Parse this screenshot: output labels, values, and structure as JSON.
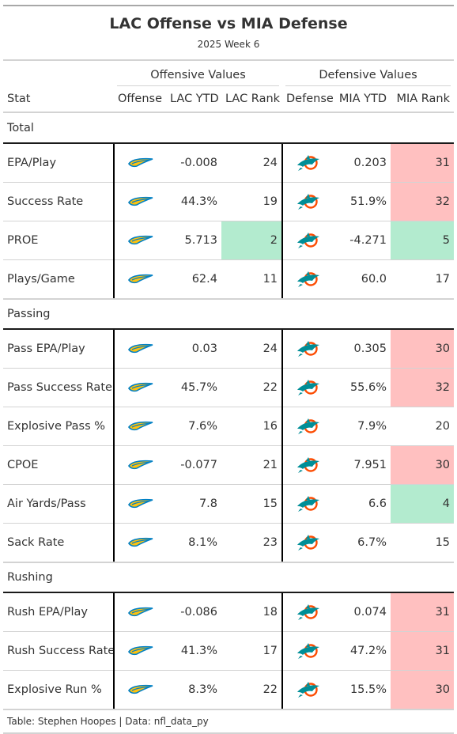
{
  "title": "LAC Offense vs MIA Defense",
  "subtitle": "2025 Week 6",
  "spanners": {
    "offense": "Offensive Values",
    "defense": "Defensive Values"
  },
  "columns": {
    "stat": "Stat",
    "offense": "Offense",
    "lac_ytd": "LAC YTD",
    "lac_rank": "LAC Rank",
    "defense": "Defense",
    "mia_ytd": "MIA YTD",
    "mia_rank": "MIA Rank"
  },
  "colors": {
    "bad": "#ffc0c0",
    "good": "#b3ebcf",
    "chargers_blue": "#0080c6",
    "chargers_gold": "#ffc20e",
    "dolphins_aqua": "#008e97",
    "dolphins_orange": "#fc4c02"
  },
  "groups": [
    {
      "label": "Total",
      "rows": [
        {
          "stat": "EPA/Play",
          "lac_ytd": "-0.008",
          "lac_rank": "24",
          "lac_highlight": "",
          "mia_ytd": "0.203",
          "mia_rank": "31",
          "mia_highlight": "bad"
        },
        {
          "stat": "Success Rate",
          "lac_ytd": "44.3%",
          "lac_rank": "19",
          "lac_highlight": "",
          "mia_ytd": "51.9%",
          "mia_rank": "32",
          "mia_highlight": "bad"
        },
        {
          "stat": "PROE",
          "lac_ytd": "5.713",
          "lac_rank": "2",
          "lac_highlight": "good",
          "mia_ytd": "-4.271",
          "mia_rank": "5",
          "mia_highlight": "good"
        },
        {
          "stat": "Plays/Game",
          "lac_ytd": "62.4",
          "lac_rank": "11",
          "lac_highlight": "",
          "mia_ytd": "60.0",
          "mia_rank": "17",
          "mia_highlight": ""
        }
      ]
    },
    {
      "label": "Passing",
      "rows": [
        {
          "stat": "Pass EPA/Play",
          "lac_ytd": "0.03",
          "lac_rank": "24",
          "lac_highlight": "",
          "mia_ytd": "0.305",
          "mia_rank": "30",
          "mia_highlight": "bad"
        },
        {
          "stat": "Pass Success Rate",
          "lac_ytd": "45.7%",
          "lac_rank": "22",
          "lac_highlight": "",
          "mia_ytd": "55.6%",
          "mia_rank": "32",
          "mia_highlight": "bad"
        },
        {
          "stat": "Explosive Pass %",
          "lac_ytd": "7.6%",
          "lac_rank": "16",
          "lac_highlight": "",
          "mia_ytd": "7.9%",
          "mia_rank": "20",
          "mia_highlight": ""
        },
        {
          "stat": "CPOE",
          "lac_ytd": "-0.077",
          "lac_rank": "21",
          "lac_highlight": "",
          "mia_ytd": "7.951",
          "mia_rank": "30",
          "mia_highlight": "bad"
        },
        {
          "stat": "Air Yards/Pass",
          "lac_ytd": "7.8",
          "lac_rank": "15",
          "lac_highlight": "",
          "mia_ytd": "6.6",
          "mia_rank": "4",
          "mia_highlight": "good"
        },
        {
          "stat": "Sack Rate",
          "lac_ytd": "8.1%",
          "lac_rank": "23",
          "lac_highlight": "",
          "mia_ytd": "6.7%",
          "mia_rank": "15",
          "mia_highlight": ""
        }
      ]
    },
    {
      "label": "Rushing",
      "rows": [
        {
          "stat": "Rush EPA/Play",
          "lac_ytd": "-0.086",
          "lac_rank": "18",
          "lac_highlight": "",
          "mia_ytd": "0.074",
          "mia_rank": "31",
          "mia_highlight": "bad"
        },
        {
          "stat": "Rush Success Rate",
          "lac_ytd": "41.3%",
          "lac_rank": "17",
          "lac_highlight": "",
          "mia_ytd": "47.2%",
          "mia_rank": "31",
          "mia_highlight": "bad"
        },
        {
          "stat": "Explosive Run %",
          "lac_ytd": "8.3%",
          "lac_rank": "22",
          "lac_highlight": "",
          "mia_ytd": "15.5%",
          "mia_rank": "30",
          "mia_highlight": "bad"
        }
      ]
    }
  ],
  "icons": {
    "offense": "chargers-logo-icon",
    "defense": "dolphins-logo-icon"
  },
  "footer": "Table: Stephen Hoopes | Data: nfl_data_py"
}
